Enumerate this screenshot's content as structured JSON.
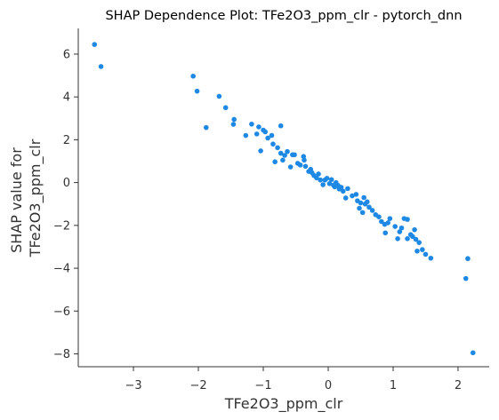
{
  "chart_data": {
    "type": "scatter",
    "title": "SHAP Dependence Plot: TFe2O3_ppm_clr - pytorch_dnn",
    "xlabel": "TFe2O3_ppm_clr",
    "ylabel_lines": [
      "SHAP value for",
      "TFe2O3_ppm_clr"
    ],
    "xlim": [
      -3.85,
      2.48
    ],
    "ylim": [
      -8.6,
      7.2
    ],
    "x_ticks": [
      -3,
      -2,
      -1,
      0,
      1,
      2
    ],
    "x_tick_labels": [
      "−3",
      "−2",
      "−1",
      "0",
      "1",
      "2"
    ],
    "y_ticks": [
      -8,
      -6,
      -4,
      -2,
      0,
      2,
      4,
      6
    ],
    "y_tick_labels": [
      "−8",
      "−6",
      "−4",
      "−2",
      "0",
      "2",
      "4",
      "6"
    ],
    "point_color": "#1e88e5",
    "grid": false,
    "points": [
      {
        "x": -3.6,
        "y": 6.45
      },
      {
        "x": -3.5,
        "y": 5.42
      },
      {
        "x": -2.08,
        "y": 4.97
      },
      {
        "x": -2.02,
        "y": 4.27
      },
      {
        "x": -1.88,
        "y": 2.57
      },
      {
        "x": -1.68,
        "y": 4.03
      },
      {
        "x": -1.58,
        "y": 3.5
      },
      {
        "x": -1.45,
        "y": 2.95
      },
      {
        "x": -1.46,
        "y": 2.72
      },
      {
        "x": -1.27,
        "y": 2.2
      },
      {
        "x": -1.18,
        "y": 2.73
      },
      {
        "x": -1.1,
        "y": 2.27
      },
      {
        "x": -1.07,
        "y": 2.6
      },
      {
        "x": -1.04,
        "y": 1.48
      },
      {
        "x": -1.0,
        "y": 2.45
      },
      {
        "x": -0.97,
        "y": 2.37
      },
      {
        "x": -0.93,
        "y": 2.08
      },
      {
        "x": -0.87,
        "y": 2.2
      },
      {
        "x": -0.85,
        "y": 1.8
      },
      {
        "x": -0.82,
        "y": 0.97
      },
      {
        "x": -0.78,
        "y": 1.63
      },
      {
        "x": -0.73,
        "y": 1.37
      },
      {
        "x": -0.73,
        "y": 2.65
      },
      {
        "x": -0.7,
        "y": 1.05
      },
      {
        "x": -0.67,
        "y": 1.27
      },
      {
        "x": -0.63,
        "y": 1.45
      },
      {
        "x": -0.58,
        "y": 0.73
      },
      {
        "x": -0.55,
        "y": 1.3
      },
      {
        "x": -0.52,
        "y": 1.3
      },
      {
        "x": -0.47,
        "y": 0.9
      },
      {
        "x": -0.43,
        "y": 0.82
      },
      {
        "x": -0.38,
        "y": 1.22
      },
      {
        "x": -0.37,
        "y": 1.05
      },
      {
        "x": -0.35,
        "y": 0.76
      },
      {
        "x": -0.3,
        "y": 0.52
      },
      {
        "x": -0.27,
        "y": 0.62
      },
      {
        "x": -0.25,
        "y": 0.46
      },
      {
        "x": -0.22,
        "y": 0.33
      },
      {
        "x": -0.18,
        "y": 0.22
      },
      {
        "x": -0.15,
        "y": 0.4
      },
      {
        "x": -0.12,
        "y": 0.12
      },
      {
        "x": -0.08,
        "y": -0.1
      },
      {
        "x": -0.05,
        "y": 0.12
      },
      {
        "x": -0.02,
        "y": 0.2
      },
      {
        "x": 0.02,
        "y": -0.05
      },
      {
        "x": 0.05,
        "y": 0.14
      },
      {
        "x": 0.08,
        "y": -0.12
      },
      {
        "x": 0.1,
        "y": -0.2
      },
      {
        "x": 0.12,
        "y": 0.0
      },
      {
        "x": 0.15,
        "y": -0.13
      },
      {
        "x": 0.17,
        "y": -0.3
      },
      {
        "x": 0.2,
        "y": -0.22
      },
      {
        "x": 0.23,
        "y": -0.4
      },
      {
        "x": 0.27,
        "y": -0.72
      },
      {
        "x": 0.3,
        "y": -0.28
      },
      {
        "x": 0.37,
        "y": -0.62
      },
      {
        "x": 0.43,
        "y": -0.55
      },
      {
        "x": 0.45,
        "y": -0.85
      },
      {
        "x": 0.48,
        "y": -1.2
      },
      {
        "x": 0.5,
        "y": -0.95
      },
      {
        "x": 0.53,
        "y": -1.4
      },
      {
        "x": 0.55,
        "y": -0.7
      },
      {
        "x": 0.57,
        "y": -1.0
      },
      {
        "x": 0.6,
        "y": -0.9
      },
      {
        "x": 0.63,
        "y": -1.15
      },
      {
        "x": 0.68,
        "y": -1.3
      },
      {
        "x": 0.73,
        "y": -1.5
      },
      {
        "x": 0.78,
        "y": -1.6
      },
      {
        "x": 0.82,
        "y": -1.82
      },
      {
        "x": 0.87,
        "y": -1.95
      },
      {
        "x": 0.88,
        "y": -2.35
      },
      {
        "x": 0.92,
        "y": -1.88
      },
      {
        "x": 0.95,
        "y": -1.68
      },
      {
        "x": 1.03,
        "y": -2.05
      },
      {
        "x": 1.07,
        "y": -2.62
      },
      {
        "x": 1.1,
        "y": -2.3
      },
      {
        "x": 1.13,
        "y": -2.12
      },
      {
        "x": 1.17,
        "y": -1.68
      },
      {
        "x": 1.22,
        "y": -1.72
      },
      {
        "x": 1.22,
        "y": -2.62
      },
      {
        "x": 1.27,
        "y": -2.43
      },
      {
        "x": 1.3,
        "y": -2.52
      },
      {
        "x": 1.33,
        "y": -2.2
      },
      {
        "x": 1.35,
        "y": -2.65
      },
      {
        "x": 1.37,
        "y": -3.2
      },
      {
        "x": 1.4,
        "y": -2.8
      },
      {
        "x": 1.45,
        "y": -3.13
      },
      {
        "x": 1.5,
        "y": -3.35
      },
      {
        "x": 1.58,
        "y": -3.53
      },
      {
        "x": 2.12,
        "y": -4.48
      },
      {
        "x": 2.15,
        "y": -3.55
      },
      {
        "x": 2.23,
        "y": -7.95
      }
    ]
  }
}
